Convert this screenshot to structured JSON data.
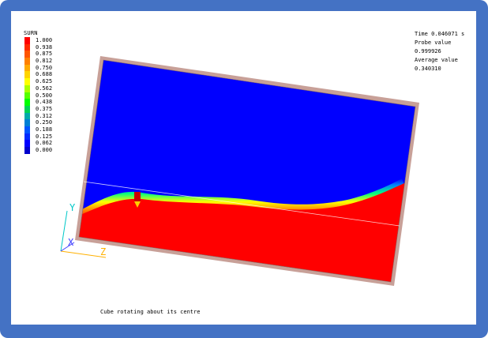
{
  "legend": {
    "title": "SURN",
    "entries": [
      {
        "label": "1.000",
        "color": "#ff0000"
      },
      {
        "label": "0.938",
        "color": "#ff2a00"
      },
      {
        "label": "0.875",
        "color": "#ff5500"
      },
      {
        "label": "0.812",
        "color": "#ff8000"
      },
      {
        "label": "0.750",
        "color": "#ffaa00"
      },
      {
        "label": "0.688",
        "color": "#ffd400"
      },
      {
        "label": "0.625",
        "color": "#ffff00"
      },
      {
        "label": "0.562",
        "color": "#aaff00"
      },
      {
        "label": "0.500",
        "color": "#55ff00"
      },
      {
        "label": "0.438",
        "color": "#00ff00"
      },
      {
        "label": "0.375",
        "color": "#00d455"
      },
      {
        "label": "0.312",
        "color": "#00aaaa"
      },
      {
        "label": "0.250",
        "color": "#0080d4"
      },
      {
        "label": "0.188",
        "color": "#0055ff"
      },
      {
        "label": "0.125",
        "color": "#002aff"
      },
      {
        "label": "0.062",
        "color": "#0000ff"
      },
      {
        "label": "0.000",
        "color": "#0000cc"
      }
    ]
  },
  "info": {
    "time": "Time 0.046071 s",
    "probe_label": "Probe value",
    "probe_value": "0.999926",
    "average_label": "Average value",
    "average_value": "0.340310"
  },
  "axes": {
    "x": "X",
    "y": "Y",
    "z": "Z"
  },
  "caption": "Cube rotating about its centre",
  "colors": {
    "frame": "#4472c4",
    "liquid": "#ff0000",
    "gas": "#0000ff",
    "wall": "#c8a098"
  }
}
